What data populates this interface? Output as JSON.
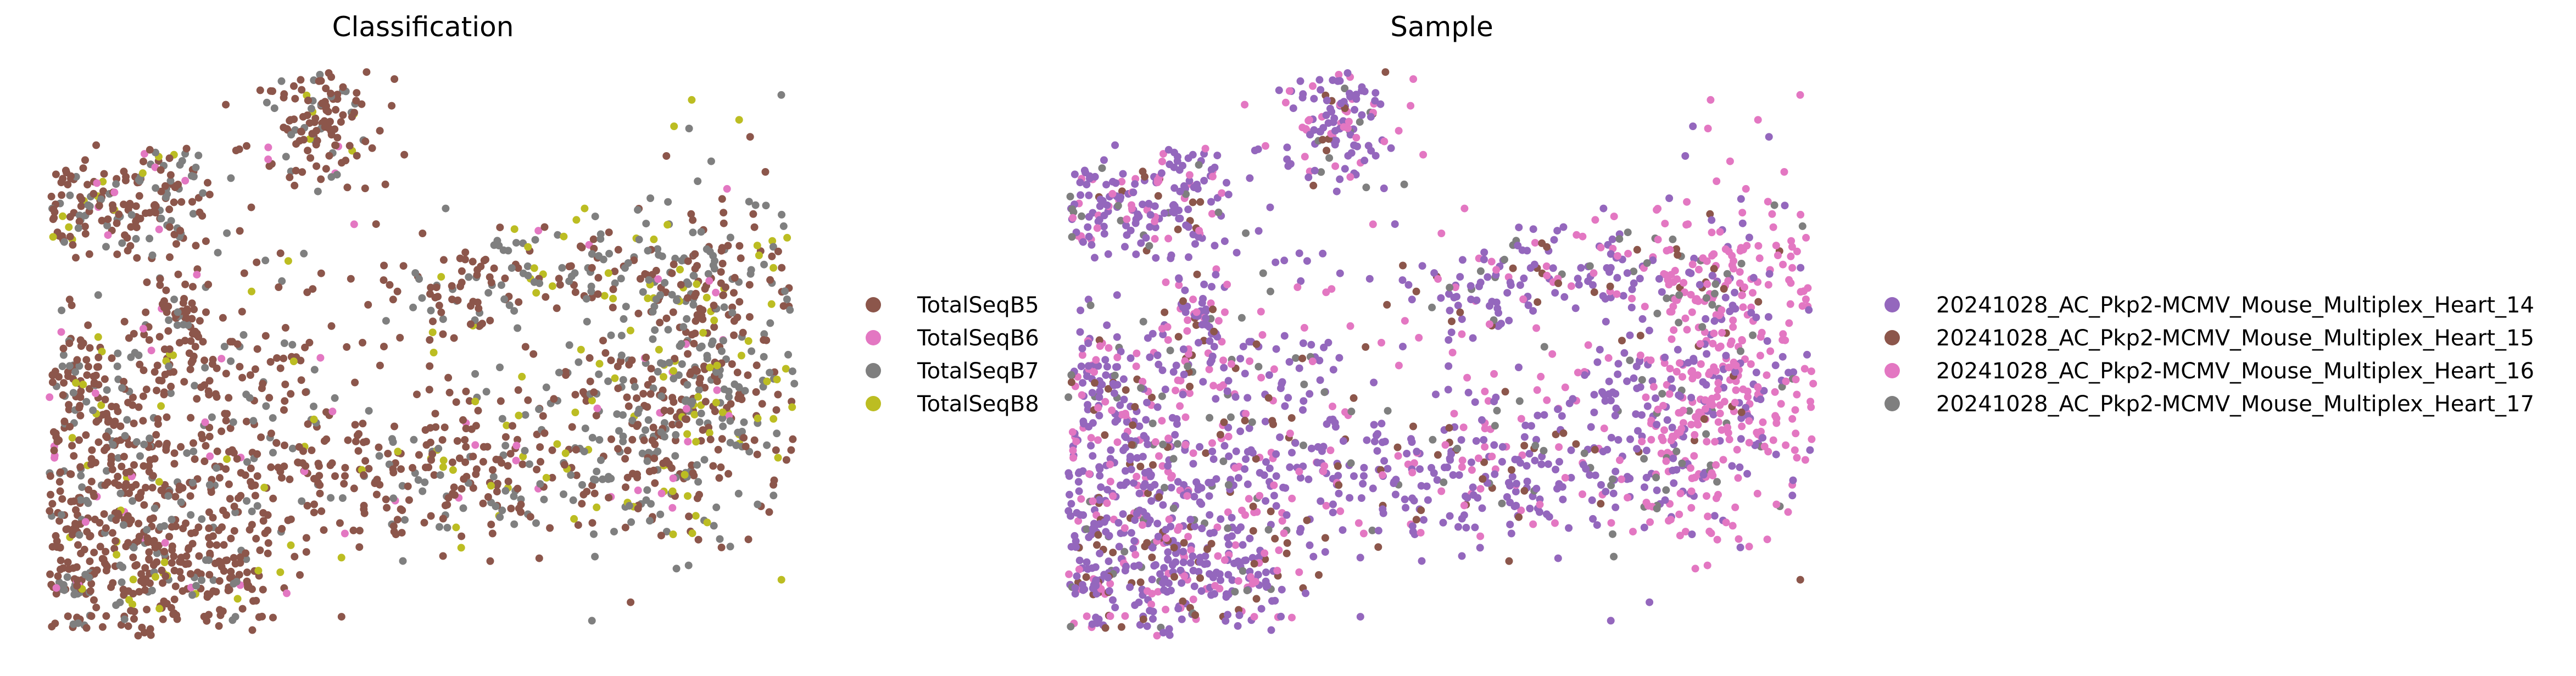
{
  "chart_data": [
    {
      "type": "scatter",
      "title": "Classification",
      "xlabel": "",
      "ylabel": "",
      "grid": false,
      "axes_visible": false,
      "legend_placement": "right-center",
      "legend": [
        {
          "label": "TotalSeqB5",
          "color": "#8c564b"
        },
        {
          "label": "TotalSeqB6",
          "color": "#e377c2"
        },
        {
          "label": "TotalSeqB7",
          "color": "#7f7f7f"
        },
        {
          "label": "TotalSeqB8",
          "color": "#bcbd22"
        }
      ]
    },
    {
      "type": "scatter",
      "title": "Sample",
      "xlabel": "",
      "ylabel": "",
      "grid": false,
      "axes_visible": false,
      "legend_placement": "right-center",
      "legend": [
        {
          "label": "20241028_AC_Pkp2-MCMV_Mouse_Multiplex_Heart_14",
          "color": "#9467bd"
        },
        {
          "label": "20241028_AC_Pkp2-MCMV_Mouse_Multiplex_Heart_15",
          "color": "#8c564b"
        },
        {
          "label": "20241028_AC_Pkp2-MCMV_Mouse_Multiplex_Heart_16",
          "color": "#e377c2"
        },
        {
          "label": "20241028_AC_Pkp2-MCMV_Mouse_Multiplex_Heart_17",
          "color": "#7f7f7f"
        }
      ]
    }
  ]
}
